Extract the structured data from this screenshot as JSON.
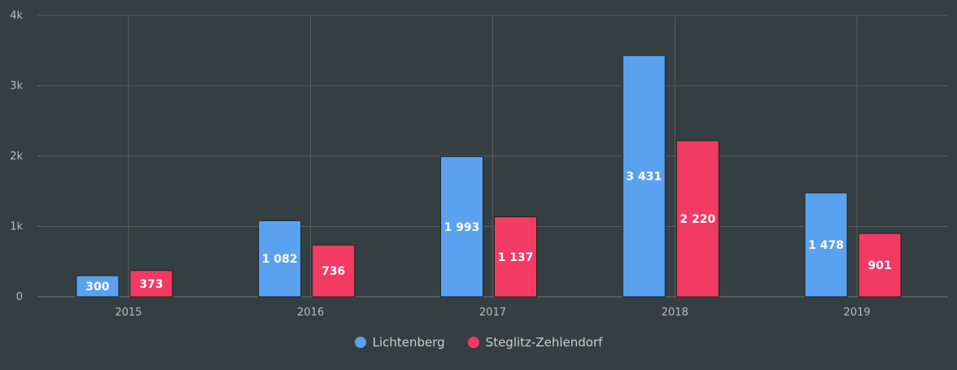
{
  "chart_data": {
    "type": "bar",
    "categories": [
      "2015",
      "2016",
      "2017",
      "2018",
      "2019"
    ],
    "series": [
      {
        "name": "Lichtenberg",
        "values": [
          300,
          1082,
          1993,
          3431,
          1478
        ],
        "labels": [
          "300",
          "1 082",
          "1 993",
          "3 431",
          "1 478"
        ],
        "color": "#5aa1f0"
      },
      {
        "name": "Steglitz-Zehlendorf",
        "values": [
          373,
          736,
          1137,
          2220,
          901
        ],
        "labels": [
          "373",
          "736",
          "1 137",
          "2 220",
          "901"
        ],
        "color": "#f23a63"
      }
    ],
    "y_ticks": [
      0,
      1000,
      2000,
      3000,
      4000
    ],
    "y_tick_labels": [
      "0",
      "1k",
      "2k",
      "3k",
      "4k"
    ],
    "ylim": [
      0,
      4000
    ],
    "grid": true,
    "legend_position": "bottom-center"
  },
  "legend": {
    "items": [
      {
        "label": "Lichtenberg",
        "color": "#5aa1f0"
      },
      {
        "label": "Steglitz-Zehlendorf",
        "color": "#f23a63"
      }
    ]
  }
}
